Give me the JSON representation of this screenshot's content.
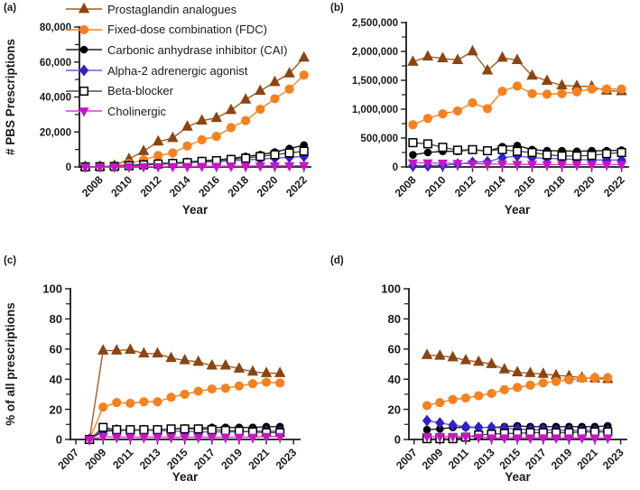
{
  "figure": {
    "background": "#ffffff",
    "legend": {
      "items": [
        {
          "label": "Prostaglandin analogues",
          "marker": "triangle-up",
          "color": "#8B4513",
          "line_color": "#A35B1E",
          "fill": "solid"
        },
        {
          "label": "Fixed-dose combination (FDC)",
          "marker": "circle",
          "color": "#F5821F",
          "line_color": "#F5821F",
          "fill": "solid"
        },
        {
          "label": "Carbonic anhydrase inhibitor (CAI)",
          "marker": "circle",
          "color": "#000000",
          "line_color": "#1a1a1a",
          "fill": "solid"
        },
        {
          "label": "Alpha-2 adrenergic agonist",
          "marker": "diamond",
          "color": "#2E22CE",
          "line_color": "#6A5ACD",
          "fill": "solid"
        },
        {
          "label": "Beta-blocker",
          "marker": "square",
          "color": "#000000",
          "line_color": "#4d4d4d",
          "fill": "open"
        },
        {
          "label": "Cholinergic",
          "marker": "triangle-down",
          "color": "#C517C5",
          "line_color": "#CC44CC",
          "fill": "solid"
        }
      ]
    }
  },
  "chart_data": [
    {
      "panel": "(a)",
      "type": "line",
      "xlabel": "Year",
      "ylabel": "# PBS Prescriptions",
      "ylim": [
        0,
        80000
      ],
      "ytick_step": 20000,
      "xlim": [
        2006.6,
        2022.45
      ],
      "xticks": [
        2008,
        2010,
        2012,
        2014,
        2016,
        2018,
        2020,
        2022
      ],
      "x": [
        2007,
        2008,
        2009,
        2010,
        2011,
        2012,
        2013,
        2014,
        2015,
        2016,
        2017,
        2018,
        2019,
        2020,
        2021,
        2022
      ],
      "series": [
        {
          "name": "Prostaglandin analogues",
          "values": [
            100,
            200,
            700,
            4500,
            9000,
            14500,
            16500,
            23000,
            26500,
            28000,
            32500,
            38500,
            43500,
            48500,
            53500,
            62500
          ]
        },
        {
          "name": "Fixed-dose combination (FDC)",
          "values": [
            50,
            100,
            400,
            2000,
            4000,
            6500,
            8000,
            12000,
            15500,
            17500,
            22500,
            26500,
            33000,
            39000,
            44500,
            52500
          ]
        },
        {
          "name": "Carbonic anhydrase inhibitor (CAI)",
          "values": [
            50,
            100,
            300,
            800,
            1500,
            2000,
            2200,
            2800,
            3500,
            4000,
            4800,
            6000,
            7000,
            8500,
            10500,
            12500
          ]
        },
        {
          "name": "Alpha-2 adrenergic agonist",
          "values": [
            50,
            100,
            200,
            600,
            1000,
            1500,
            1800,
            2300,
            2800,
            3000,
            3500,
            4000,
            4500,
            5000,
            5500,
            6000
          ]
        },
        {
          "name": "Beta-blocker",
          "values": [
            50,
            150,
            300,
            700,
            1200,
            1700,
            2000,
            2500,
            3200,
            3600,
            4300,
            5000,
            6000,
            7000,
            8000,
            9000
          ]
        },
        {
          "name": "Cholinergic",
          "values": [
            0,
            0,
            50,
            100,
            150,
            200,
            250,
            300,
            350,
            400,
            450,
            500,
            600,
            650,
            700,
            800
          ]
        }
      ]
    },
    {
      "panel": "(b)",
      "type": "line",
      "xlabel": "Year",
      "ylabel": "",
      "ylim": [
        0,
        2500000
      ],
      "ytick_step": 500000,
      "xlim": [
        2007.55,
        2022.45
      ],
      "xticks": [
        2008,
        2010,
        2012,
        2014,
        2016,
        2018,
        2020,
        2022
      ],
      "x": [
        2008,
        2009,
        2010,
        2011,
        2012,
        2013,
        2014,
        2015,
        2016,
        2017,
        2018,
        2019,
        2020,
        2021,
        2022
      ],
      "series": [
        {
          "name": "Prostaglandin analogues",
          "values": [
            1820000,
            1910000,
            1880000,
            1850000,
            2000000,
            1670000,
            1890000,
            1850000,
            1580000,
            1490000,
            1410000,
            1400000,
            1390000,
            1320000,
            1310000
          ]
        },
        {
          "name": "Fixed-dose combination (FDC)",
          "values": [
            730000,
            840000,
            920000,
            970000,
            1110000,
            1010000,
            1310000,
            1400000,
            1270000,
            1260000,
            1270000,
            1300000,
            1350000,
            1350000,
            1350000
          ]
        },
        {
          "name": "Carbonic anhydrase inhibitor (CAI)",
          "values": [
            210000,
            250000,
            270000,
            270000,
            300000,
            270000,
            350000,
            370000,
            300000,
            280000,
            280000,
            270000,
            280000,
            280000,
            290000
          ]
        },
        {
          "name": "Alpha-2 adrenergic agonist",
          "values": [
            20000,
            20000,
            30000,
            50000,
            80000,
            90000,
            160000,
            190000,
            160000,
            150000,
            140000,
            130000,
            120000,
            120000,
            120000
          ]
        },
        {
          "name": "Beta-blocker",
          "values": [
            420000,
            400000,
            340000,
            290000,
            300000,
            280000,
            300000,
            270000,
            250000,
            210000,
            190000,
            190000,
            200000,
            230000,
            250000
          ]
        },
        {
          "name": "Cholinergic",
          "values": [
            70000,
            70000,
            65000,
            60000,
            55000,
            50000,
            50000,
            45000,
            45000,
            40000,
            40000,
            40000,
            40000,
            40000,
            40000
          ]
        }
      ]
    },
    {
      "panel": "(c)",
      "type": "line",
      "xlabel": "Year",
      "ylabel": "% of all prescriptions",
      "ylim": [
        0,
        100
      ],
      "ytick_step": 20,
      "xlim": [
        2006.6,
        2023.45
      ],
      "xticks": [
        2007,
        2009,
        2011,
        2013,
        2015,
        2017,
        2019,
        2021,
        2023
      ],
      "x": [
        2008,
        2009,
        2010,
        2011,
        2012,
        2013,
        2014,
        2015,
        2016,
        2017,
        2018,
        2019,
        2020,
        2021,
        2022
      ],
      "series": [
        {
          "name": "Prostaglandin analogues",
          "values": [
            0,
            59,
            59,
            59.5,
            57,
            57,
            54,
            52.5,
            51.5,
            49,
            49,
            47,
            45,
            44,
            44
          ]
        },
        {
          "name": "Fixed-dose combination (FDC)",
          "values": [
            0,
            21.5,
            24.5,
            24,
            25,
            25,
            28,
            30,
            32,
            33.5,
            34,
            35.5,
            37,
            38,
            37.5
          ]
        },
        {
          "name": "Carbonic anhydrase inhibitor (CAI)",
          "values": [
            0,
            5.5,
            6,
            6,
            6.5,
            6.5,
            7,
            7.5,
            7.5,
            8,
            8,
            8,
            8,
            8.5,
            8.5
          ]
        },
        {
          "name": "Alpha-2 adrenergic agonist",
          "values": [
            0,
            7,
            6.5,
            6,
            6,
            6,
            5.5,
            5.5,
            5,
            5,
            5,
            5,
            5.5,
            5.5,
            5.5
          ]
        },
        {
          "name": "Beta-blocker",
          "values": [
            0,
            8,
            6.5,
            6.5,
            6.5,
            6.5,
            7,
            7,
            7,
            6.5,
            6,
            5.5,
            5,
            4.5,
            4.5
          ]
        },
        {
          "name": "Cholinergic",
          "values": [
            0,
            2,
            1.5,
            1.5,
            1.5,
            1.5,
            1.5,
            1.5,
            1.5,
            1.5,
            1.5,
            1.5,
            1.5,
            2,
            2
          ]
        }
      ]
    },
    {
      "panel": "(d)",
      "type": "line",
      "xlabel": "Year",
      "ylabel": "",
      "ylim": [
        0,
        100
      ],
      "ytick_step": 20,
      "xlim": [
        2006.6,
        2023.45
      ],
      "xticks": [
        2007,
        2009,
        2011,
        2013,
        2015,
        2017,
        2019,
        2021,
        2023
      ],
      "x": [
        2008,
        2009,
        2010,
        2011,
        2012,
        2013,
        2014,
        2015,
        2016,
        2017,
        2018,
        2019,
        2020,
        2021,
        2022
      ],
      "series": [
        {
          "name": "Prostaglandin analogues",
          "values": [
            56,
            55.5,
            54.5,
            52.5,
            51.5,
            50,
            46.5,
            44.5,
            44,
            43.5,
            42.5,
            42,
            41,
            40.5,
            40
          ]
        },
        {
          "name": "Fixed-dose combination (FDC)",
          "values": [
            22.5,
            24.5,
            26.5,
            27.5,
            29,
            30.5,
            33,
            34.5,
            36,
            37.5,
            38.5,
            39.5,
            40.5,
            41,
            41
          ]
        },
        {
          "name": "Carbonic anhydrase inhibitor (CAI)",
          "values": [
            6.5,
            7,
            8,
            8,
            8,
            8,
            8.5,
            9,
            8.5,
            8.5,
            8.5,
            8.5,
            8.5,
            8.5,
            9
          ]
        },
        {
          "name": "Alpha-2 adrenergic agonist",
          "values": [
            12.5,
            11,
            9.5,
            8.5,
            8,
            8,
            7.5,
            7,
            6.5,
            6.5,
            6,
            6,
            6,
            6,
            6
          ]
        },
        {
          "name": "Beta-blocker",
          "values": [
            0.5,
            0.5,
            0.5,
            1.5,
            3,
            3.5,
            4,
            4,
            4.5,
            4.5,
            4.5,
            4.5,
            5,
            5,
            5
          ]
        },
        {
          "name": "Cholinergic",
          "values": [
            2,
            2,
            2,
            2,
            1.5,
            1,
            1,
            1,
            1,
            1,
            1,
            1,
            1,
            1,
            1
          ]
        }
      ]
    }
  ]
}
